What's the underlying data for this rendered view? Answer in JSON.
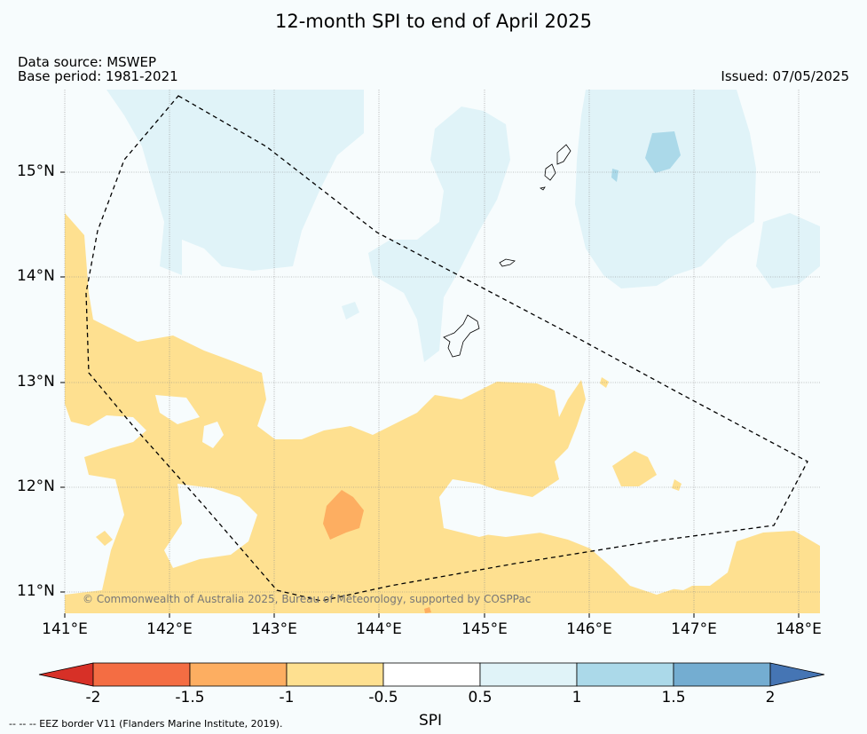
{
  "title": "12-month SPI to end of April 2025",
  "data_source": "Data source: MSWEP",
  "base_period": "Base period: 1981-2021",
  "issued": "Issued: 07/05/2025",
  "copyright": "© Commonwealth of Australia 2025, Bureau of Meteorology, supported by COSPPac",
  "eez_note": "--  --  -- EEZ border V11 (Flanders Marine Institute, 2019).",
  "lat_labels": [
    "15°N",
    "14°N",
    "13°N",
    "12°N",
    "11°N"
  ],
  "lon_labels": [
    "141°E",
    "142°E",
    "143°E",
    "144°E",
    "145°E",
    "146°E",
    "147°E",
    "148°E"
  ],
  "colorbar": {
    "title": "SPI",
    "ticks": [
      "-2",
      "-1.5",
      "-1",
      "-0.5",
      "0.5",
      "1",
      "1.5",
      "2"
    ],
    "colors": [
      "#d73027",
      "#f46d43",
      "#fdae61",
      "#fee090",
      "#ffffff",
      "#e0f3f8",
      "#abd9e9",
      "#74add1",
      "#4575b4"
    ]
  },
  "map": {
    "extent_lon": [
      141,
      148.2
    ],
    "extent_lat": [
      10.8,
      15.8
    ],
    "ocean_color": "#f7fcfd"
  }
}
